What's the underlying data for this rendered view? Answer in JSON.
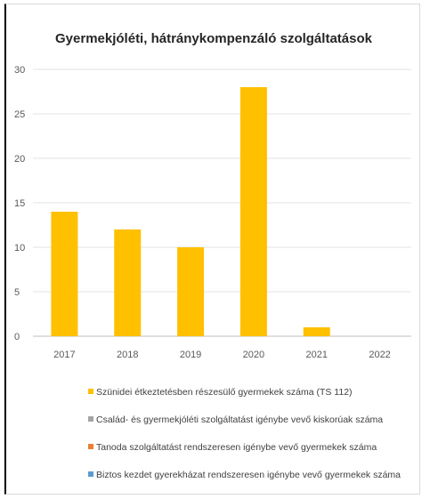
{
  "chart_data": {
    "type": "bar",
    "title": "Gyermekjóléti, hátránykompenzáló szolgáltatások",
    "categories": [
      "2017",
      "2018",
      "2019",
      "2020",
      "2021",
      "2022"
    ],
    "ylim": [
      0,
      30
    ],
    "yticks": [
      0,
      5,
      10,
      15,
      20,
      25,
      30
    ],
    "grid": true,
    "legend_position": "bottom",
    "series": [
      {
        "name": "Szünidei étkeztetésben részesülő gyermekek száma (TS 112)",
        "color": "#FFC000",
        "values": [
          14,
          12,
          10,
          28,
          1,
          0
        ]
      },
      {
        "name": "Család- és gyermekjóléti szolgáltatást igénybe vevő kiskorúak száma",
        "color": "#A5A5A5",
        "values": [
          0,
          0,
          0,
          0,
          0,
          0
        ]
      },
      {
        "name": "Tanoda szolgáltatást rendszeresen igénybe vevő gyermekek száma",
        "color": "#ED7D31",
        "values": [
          0,
          0,
          0,
          0,
          0,
          0
        ]
      },
      {
        "name": "Biztos kezdet gyerekházat rendszeresen igénybe vevő gyermekek száma",
        "color": "#5B9BD5",
        "values": [
          0,
          0,
          0,
          0,
          0,
          0
        ]
      }
    ]
  }
}
